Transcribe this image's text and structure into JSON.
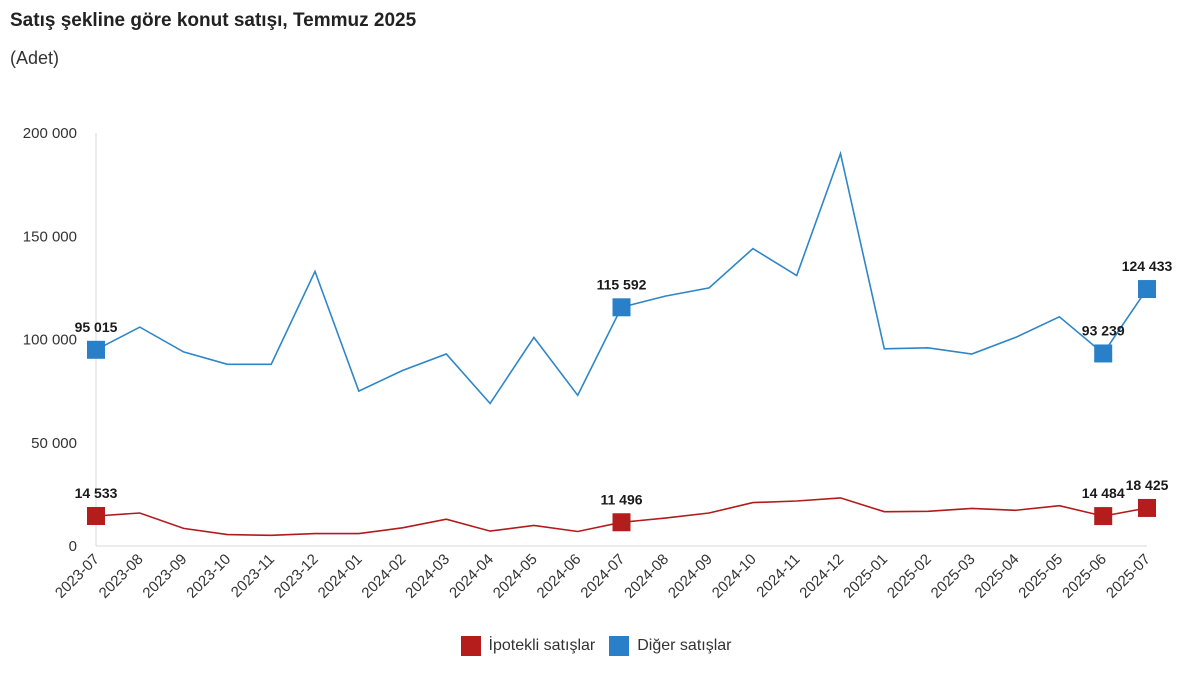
{
  "title": "Satış şekline göre konut satışı, Temmuz 2025",
  "subtitle": "(Adet)",
  "legend": {
    "mortgage": "İpotekli satışlar",
    "other": "Diğer satışlar"
  },
  "colors": {
    "mortgage": "#b01c1c",
    "other": "#2e86c8",
    "mortgage_marker": "#b51d1d",
    "other_marker": "#2a80c8"
  },
  "chart_data": {
    "type": "line",
    "title": "Satış şekline göre konut satışı, Temmuz 2025",
    "ylabel": "(Adet)",
    "ylim": [
      0,
      200000
    ],
    "yticks": [
      0,
      50000,
      100000,
      150000,
      200000
    ],
    "ytick_labels": [
      "0",
      "50 000",
      "100 000",
      "150 000",
      "200 000"
    ],
    "legend_position": "bottom-center",
    "categories": [
      "2023-07",
      "2023-08",
      "2023-09",
      "2023-10",
      "2023-11",
      "2023-12",
      "2024-01",
      "2024-02",
      "2024-03",
      "2024-04",
      "2024-05",
      "2024-06",
      "2024-07",
      "2024-08",
      "2024-09",
      "2024-10",
      "2024-11",
      "2024-12",
      "2025-01",
      "2025-02",
      "2025-03",
      "2025-04",
      "2025-05",
      "2025-06",
      "2025-07"
    ],
    "series": [
      {
        "name": "İpotekli satışlar",
        "key": "mortgage",
        "values": [
          14533,
          16000,
          8500,
          5500,
          5200,
          6000,
          6000,
          8800,
          13000,
          7200,
          10000,
          7000,
          11496,
          13500,
          16000,
          21000,
          21800,
          23300,
          16600,
          16800,
          18200,
          17300,
          19500,
          14484,
          18425
        ],
        "markers": [
          0,
          12,
          23,
          24
        ],
        "labels": {
          "0": "14 533",
          "12": "11 496",
          "23": "14 484",
          "24": "18 425"
        }
      },
      {
        "name": "Diğer satışlar",
        "key": "other",
        "values": [
          95015,
          106000,
          94000,
          88000,
          88000,
          133000,
          75000,
          85000,
          93000,
          69000,
          101000,
          73000,
          115592,
          121000,
          125000,
          144000,
          131000,
          190000,
          95500,
          96000,
          93000,
          101000,
          111000,
          93239,
          124433
        ],
        "markers": [
          0,
          12,
          23,
          24
        ],
        "labels": {
          "0": "95 015",
          "12": "115 592",
          "23": "93 239",
          "24": "124 433"
        }
      }
    ]
  }
}
